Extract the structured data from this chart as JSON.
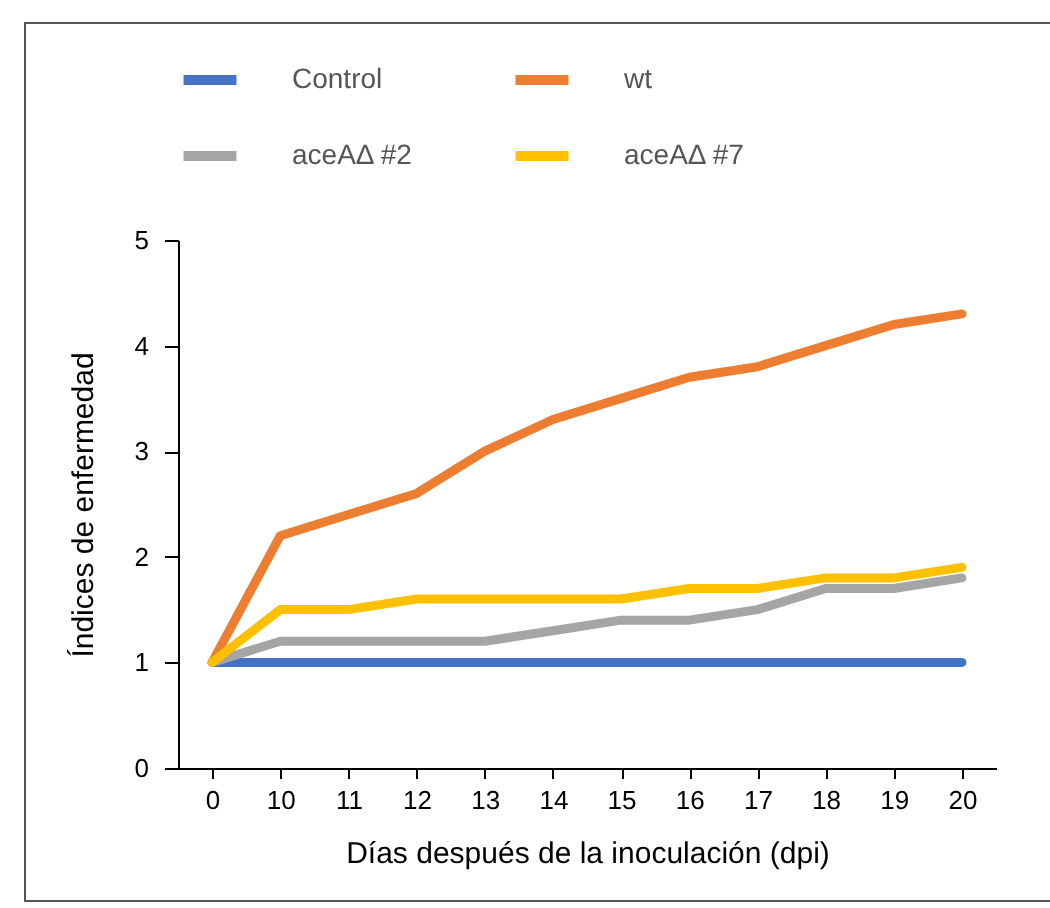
{
  "chart_data": {
    "type": "line",
    "xlabel": "Días después de la inoculación (dpi)",
    "ylabel": "Índices de enfermedad",
    "categories": [
      "0",
      "10",
      "11",
      "12",
      "13",
      "14",
      "15",
      "16",
      "17",
      "18",
      "19",
      "20"
    ],
    "ylim": [
      0,
      5
    ],
    "yticks": [
      0,
      1,
      2,
      3,
      4,
      5
    ],
    "grid": false,
    "legend": "top",
    "marker": "none",
    "line_style": "solid",
    "series": [
      {
        "name": "Control",
        "color": "#4472c4",
        "values": [
          1,
          1,
          1,
          1,
          1,
          1,
          1,
          1,
          1,
          1,
          1,
          1
        ]
      },
      {
        "name": "wt",
        "color": "#ed7d31",
        "values": [
          1,
          2.2,
          2.4,
          2.6,
          3.0,
          3.3,
          3.5,
          3.7,
          3.8,
          4.0,
          4.2,
          4.3
        ]
      },
      {
        "name": "aceAΔ #2",
        "color": "#a5a5a5",
        "values": [
          1,
          1.2,
          1.2,
          1.2,
          1.2,
          1.3,
          1.4,
          1.4,
          1.5,
          1.7,
          1.7,
          1.8
        ]
      },
      {
        "name": "aceAΔ #7",
        "color": "#ffc000",
        "values": [
          1,
          1.5,
          1.5,
          1.6,
          1.6,
          1.6,
          1.6,
          1.7,
          1.7,
          1.8,
          1.8,
          1.9
        ]
      }
    ]
  }
}
